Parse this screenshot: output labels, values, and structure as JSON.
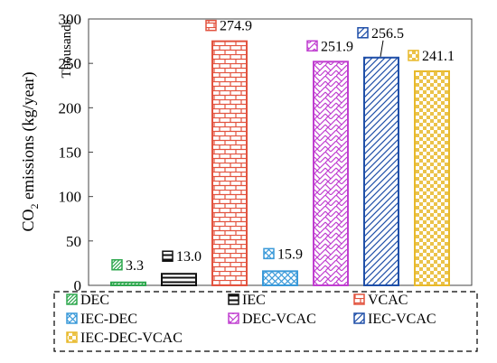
{
  "chart_data": {
    "type": "bar",
    "ylabel_main": "CO",
    "ylabel_sub": "2",
    "ylabel_rest": " emissions (kg/year)",
    "units_note": "Thousands",
    "ylim": [
      0,
      300
    ],
    "yticks": [
      "0",
      "50",
      "100",
      "150",
      "200",
      "250",
      "300"
    ],
    "grid": false,
    "legend_position": "bottom",
    "categories": [
      "DEC",
      "IEC",
      "VCAC",
      "IEC-DEC",
      "DEC-VCAC",
      "IEC-VCAC",
      "IEC-DEC-VCAC"
    ],
    "values": [
      3.3,
      13.0,
      274.9,
      15.9,
      251.9,
      256.5,
      241.1
    ],
    "value_labels": [
      "3.3",
      "13.0",
      "274.9",
      "15.9",
      "251.9",
      "256.5",
      "241.1"
    ],
    "series_colors": [
      "#2fa84f",
      "#111111",
      "#e2533f",
      "#3b9ad9",
      "#c03fd0",
      "#1f4fa8",
      "#e8b92a"
    ],
    "patterns": [
      "diag-dense",
      "horizontal-bold",
      "brick",
      "crosshatch",
      "zigzag",
      "diag-wide",
      "check"
    ]
  }
}
